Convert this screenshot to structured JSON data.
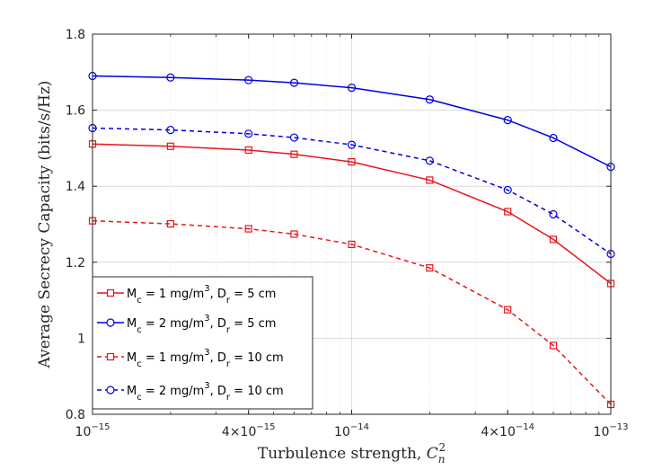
{
  "chart_data": {
    "type": "line",
    "xscale": "log",
    "xlim": [
      1e-15,
      1e-13
    ],
    "ylim": [
      0.8,
      1.8
    ],
    "xlabel": "Turbulence strength, ",
    "xlabel_math": {
      "base": "C",
      "sub": "n",
      "sup": "2"
    },
    "ylabel": "Average Secrecy Capacity (bits/s/Hz)",
    "grid": true,
    "xticks": [
      {
        "value": 1e-15,
        "mant": "",
        "base": "10",
        "exp": "−15"
      },
      {
        "value": 4e-15,
        "mant": "4×",
        "base": "10",
        "exp": "−15"
      },
      {
        "value": 1e-14,
        "mant": "",
        "base": "10",
        "exp": "−14"
      },
      {
        "value": 4e-14,
        "mant": "4×",
        "base": "10",
        "exp": "−14"
      },
      {
        "value": 1e-13,
        "mant": "",
        "base": "10",
        "exp": "−13"
      }
    ],
    "yticks": [
      {
        "value": 0.8,
        "label": "0.8"
      },
      {
        "value": 1.0,
        "label": "1"
      },
      {
        "value": 1.2,
        "label": "1.2"
      },
      {
        "value": 1.4,
        "label": "1.4"
      },
      {
        "value": 1.6,
        "label": "1.6"
      },
      {
        "value": 1.8,
        "label": "1.8"
      }
    ],
    "x": [
      1e-15,
      2e-15,
      4e-15,
      6e-15,
      1e-14,
      2e-14,
      4e-14,
      6e-14,
      1e-13
    ],
    "series": [
      {
        "name": "M_c = 1 mg/m^3, D_r = 5 cm",
        "color": "#e8141a",
        "dash": "solid",
        "marker": "square",
        "legend": {
          "pre": "M",
          "sub1": "c",
          "mid": " = 1 mg/m",
          "sup": "3",
          "mid2": ", D",
          "sub2": "r",
          "post": " = 5 cm"
        },
        "values": [
          1.511,
          1.505,
          1.495,
          1.484,
          1.464,
          1.416,
          1.333,
          1.26,
          1.144
        ]
      },
      {
        "name": "M_c = 2 mg/m^3, D_r = 5 cm",
        "color": "#0000e0",
        "dash": "solid",
        "marker": "circle",
        "legend": {
          "pre": "M",
          "sub1": "c",
          "mid": " = 2 mg/m",
          "sup": "3",
          "mid2": ", D",
          "sub2": "r",
          "post": " = 5 cm"
        },
        "values": [
          1.69,
          1.686,
          1.679,
          1.672,
          1.659,
          1.628,
          1.574,
          1.527,
          1.451
        ]
      },
      {
        "name": "M_c = 1 mg/m^3, D_r = 10 cm",
        "color": "#e8141a",
        "dash": "dashed",
        "marker": "square",
        "legend": {
          "pre": "M",
          "sub1": "c",
          "mid": " = 1 mg/m",
          "sup": "3",
          "mid2": ", D",
          "sub2": "r",
          "post": " = 10 cm"
        },
        "values": [
          1.309,
          1.301,
          1.288,
          1.274,
          1.247,
          1.185,
          1.075,
          0.981,
          0.826
        ]
      },
      {
        "name": "M_c = 2 mg/m^3, D_r = 10 cm",
        "color": "#0000e0",
        "dash": "dashed",
        "marker": "circle",
        "legend": {
          "pre": "M",
          "sub1": "c",
          "mid": " = 2 mg/m",
          "sup": "3",
          "mid2": ", D",
          "sub2": "r",
          "post": " = 10 cm"
        },
        "values": [
          1.553,
          1.548,
          1.538,
          1.528,
          1.509,
          1.467,
          1.39,
          1.326,
          1.222
        ]
      }
    ],
    "legend_position": "lower-left"
  }
}
